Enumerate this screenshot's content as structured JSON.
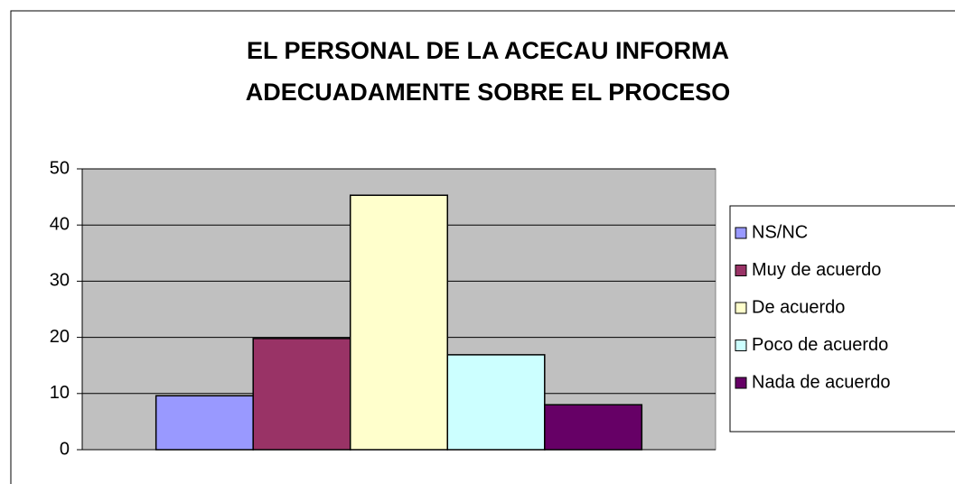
{
  "chart_data": {
    "type": "bar",
    "title": [
      "EL PERSONAL DE LA ACECAU INFORMA",
      "ADECUADAMENTE SOBRE EL PROCESO"
    ],
    "categories": [
      null
    ],
    "series": [
      {
        "name": "NS/NC",
        "color": "#9999ff",
        "values": [
          9.6
        ]
      },
      {
        "name": "Muy de acuerdo",
        "color": "#993366",
        "values": [
          19.8
        ]
      },
      {
        "name": "De acuerdo",
        "color": "#ffffcc",
        "values": [
          45.3
        ]
      },
      {
        "name": "Poco de acuerdo",
        "color": "#ccffff",
        "values": [
          16.9
        ]
      },
      {
        "name": "Nada de acuerdo",
        "color": "#660066",
        "values": [
          8.0
        ]
      }
    ],
    "ylim": [
      0,
      50
    ],
    "yticks": [
      0,
      10,
      20,
      30,
      40,
      50
    ],
    "grid": true,
    "legend": "right"
  }
}
